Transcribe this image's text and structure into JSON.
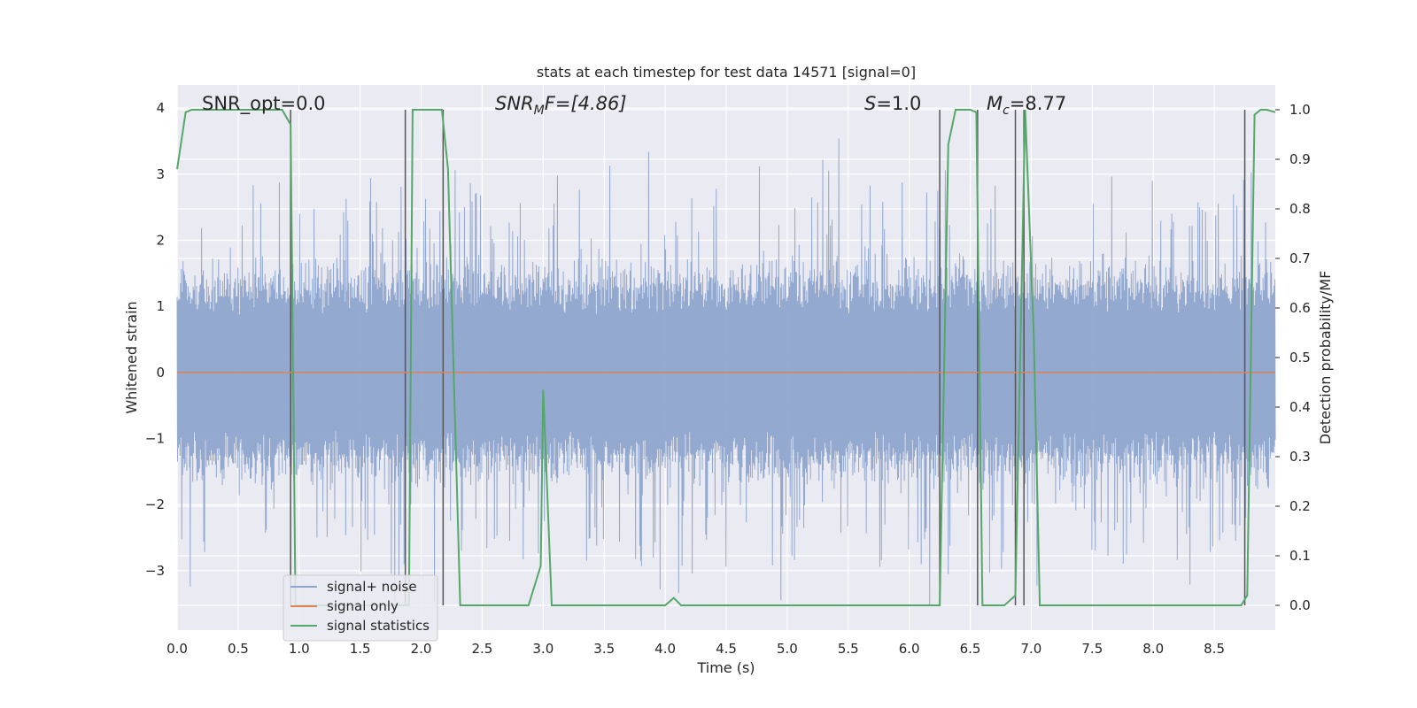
{
  "chart_data": {
    "type": "line",
    "title": "stats at each timestep for test data 14571 [signal=0]",
    "xlabel": "Time (s)",
    "ylabel": "Whitened strain",
    "ylabel_right": "Detection probability/MF",
    "xlim": [
      0.0,
      9.0
    ],
    "ylim": [
      -3.9,
      4.35
    ],
    "ylim_right": [
      -0.05,
      1.05
    ],
    "x_ticks": [
      "0.0",
      "0.5",
      "1.0",
      "1.5",
      "2.0",
      "2.5",
      "3.0",
      "3.5",
      "4.0",
      "4.5",
      "5.0",
      "5.5",
      "6.0",
      "6.5",
      "7.0",
      "7.5",
      "8.0",
      "8.5"
    ],
    "y_ticks": [
      "4",
      "3",
      "2",
      "1",
      "0",
      "−1",
      "−2",
      "−3"
    ],
    "y_ticks_right": [
      "1.0",
      "0.9",
      "0.8",
      "0.7",
      "0.6",
      "0.5",
      "0.4",
      "0.3",
      "0.2",
      "0.1",
      "0.0"
    ],
    "grid": true,
    "legend_position": "lower-left",
    "annotations": {
      "snr_opt": "SNR_opt=0.0",
      "snr_mf_base": "SNR",
      "snr_mf_sub": "M",
      "snr_mf_rest": "F=[4.86]",
      "s_base": "S",
      "s_rest": "=1.0",
      "mc_base": "M",
      "mc_sub": "c",
      "mc_rest": "=8.77"
    },
    "series": [
      {
        "name": "signal+ noise",
        "color": "#8fa5cc",
        "description_values": "noise band approx ±1.3 with spikes to ±3.8 over 0–9 s"
      },
      {
        "name": "signal only",
        "color": "#dd8452",
        "x": [
          0.0,
          9.0
        ],
        "y": [
          0.0,
          0.0
        ]
      },
      {
        "name": "signal statistics",
        "color": "#55a868",
        "x": [
          0.0,
          0.07,
          0.12,
          0.86,
          0.93,
          0.97,
          1.9,
          1.93,
          2.17,
          2.22,
          2.32,
          2.4,
          2.88,
          2.98,
          3.0,
          3.07,
          3.95,
          4.0,
          4.07,
          4.13,
          6.25,
          6.32,
          6.38,
          6.5,
          6.55,
          6.6,
          6.65,
          6.78,
          6.87,
          6.95,
          7.02,
          7.07,
          8.72,
          8.77,
          8.83,
          8.88,
          8.93,
          9.0
        ],
        "y": [
          0.88,
          0.995,
          1.0,
          1.0,
          0.97,
          0.0,
          0.0,
          1.0,
          1.0,
          0.88,
          0.0,
          0.0,
          0.0,
          0.08,
          0.435,
          0.0,
          0.0,
          0.0,
          0.015,
          0.0,
          0.0,
          0.93,
          1.0,
          1.0,
          0.995,
          0.0,
          0.0,
          0.0,
          0.02,
          1.0,
          0.55,
          0.0,
          0.0,
          0.02,
          0.99,
          1.0,
          1.0,
          0.995
        ]
      }
    ],
    "vertical_lines": [
      0.93,
      1.87,
      2.18,
      6.25,
      6.56,
      6.87,
      6.94,
      8.75
    ]
  }
}
